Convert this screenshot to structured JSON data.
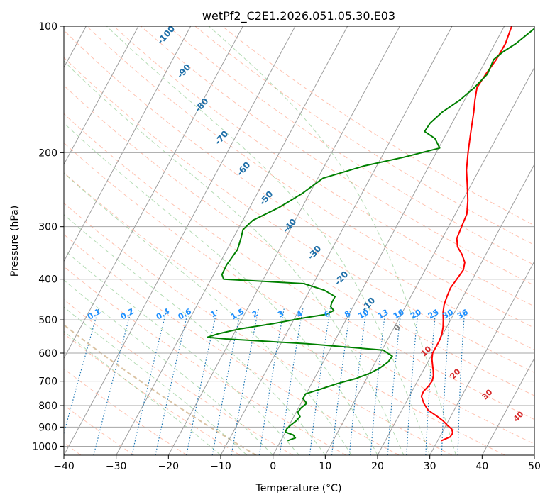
{
  "chart_data": {
    "type": "skew-t",
    "title": "wetPf2_C2E1.2026.051.05.30.E03",
    "xlabel": "Temperature (°C)",
    "ylabel": "Pressure (hPa)",
    "xlim": [
      -40,
      50
    ],
    "ylim_hpa": [
      1050,
      100
    ],
    "x_ticks": [
      -40,
      -30,
      -20,
      -10,
      0,
      10,
      20,
      30,
      40,
      50
    ],
    "x_tick_labels": [
      "−40",
      "−30",
      "−20",
      "−10",
      "0",
      "10",
      "20",
      "30",
      "40",
      "50"
    ],
    "y_ticks": [
      100,
      200,
      300,
      400,
      500,
      600,
      700,
      800,
      900,
      1000
    ],
    "y_tick_labels": [
      "100",
      "200",
      "300",
      "400",
      "500",
      "600",
      "700",
      "800",
      "900",
      "1000"
    ],
    "isotherms": [
      -160,
      -150,
      -140,
      -130,
      -120,
      -110,
      -100,
      -90,
      -80,
      -70,
      -60,
      -50,
      -40,
      -30,
      -20,
      -10,
      0,
      10,
      20,
      30,
      40,
      50
    ],
    "dry_adiabats_c": [
      -40,
      -30,
      -20,
      -10,
      0,
      10,
      20,
      30,
      40,
      50,
      60,
      70,
      80,
      90,
      100,
      110,
      120,
      130,
      140,
      150
    ],
    "moist_adiabats_c": [
      -10,
      -5,
      0,
      5,
      10,
      15,
      20,
      25,
      30,
      35
    ],
    "mixing_ratios": [
      0.1,
      0.2,
      0.4,
      0.6,
      1,
      1.5,
      2,
      3,
      4,
      6,
      8,
      10,
      13,
      16,
      20,
      25,
      30,
      36
    ],
    "mixing_ratio_labels": [
      "0.1",
      "0.2",
      "0.4",
      "0.6",
      "1",
      "1.5",
      "2",
      "3",
      "4",
      "6",
      "8",
      "10",
      "13",
      "16",
      "20",
      "25",
      "30",
      "36"
    ],
    "pseudoadiabat_labels": [
      {
        "text": "-100",
        "p": 112,
        "t": -100
      },
      {
        "text": "-90",
        "p": 130,
        "t": -90
      },
      {
        "text": "-80",
        "p": 153,
        "t": -80
      },
      {
        "text": "-70",
        "p": 185,
        "t": -70
      },
      {
        "text": "-60",
        "p": 230,
        "t": -60
      },
      {
        "text": "-50",
        "p": 285,
        "t": -50
      },
      {
        "text": "-40",
        "p": 325,
        "t": -40
      },
      {
        "text": "-30",
        "p": 370,
        "t": -30
      },
      {
        "text": "-20",
        "p": 410,
        "t": -20
      },
      {
        "text": "-10",
        "p": 470,
        "t": -10
      }
    ],
    "thetae_labels": [
      {
        "text": "0",
        "p": 540
      },
      {
        "text": "10",
        "p": 610
      },
      {
        "text": "20",
        "p": 690
      },
      {
        "text": "30",
        "p": 780
      },
      {
        "text": "40",
        "p": 880
      }
    ],
    "colors": {
      "temperature": "#ff0000",
      "dewpoint": "#008000",
      "isotherm": "#9e9e9e",
      "isobar": "#a6a6a6",
      "dry_adiabat": "#ff8f70",
      "moist_adiabat": "#69b969",
      "mixing_ratio": "#1f77b4",
      "mixing_ratio_label": "#1e90ff",
      "label_dark_blue": "#1f6fa8",
      "thetae_label": "#d62728",
      "tan_curve": "#d2b48c"
    },
    "series": [
      {
        "name": "Temperature",
        "pressure_hpa": [
          970,
          950,
          930,
          910,
          890,
          870,
          850,
          820,
          790,
          760,
          740,
          720,
          700,
          680,
          660,
          640,
          620,
          600,
          580,
          560,
          540,
          520,
          500,
          480,
          460,
          440,
          420,
          400,
          380,
          365,
          350,
          335,
          320,
          300,
          280,
          260,
          240,
          220,
          200,
          180,
          160,
          150,
          140,
          130,
          120,
          110,
          100
        ],
        "values": [
          30.7,
          32,
          32.1,
          31.5,
          30.2,
          29.0,
          27.5,
          25.0,
          23.5,
          22.3,
          22.2,
          22.6,
          22.8,
          22.5,
          21.9,
          21.2,
          20.5,
          20.0,
          20.0,
          20.0,
          19.8,
          19.3,
          18.6,
          17.8,
          17.2,
          16.9,
          16.7,
          17.0,
          17.3,
          16.8,
          15.5,
          13.8,
          12.8,
          12.5,
          12.2,
          11.0,
          9.4,
          7.6,
          6.1,
          4.6,
          3.0,
          2.0,
          1.1,
          1.4,
          1.9,
          2.0,
          1.4
        ]
      },
      {
        "name": "Dewpoint",
        "pressure_hpa": [
          970,
          955,
          940,
          925,
          910,
          890,
          870,
          850,
          830,
          810,
          790,
          770,
          750,
          730,
          710,
          690,
          670,
          650,
          630,
          610,
          590,
          570,
          555,
          550,
          540,
          525,
          510,
          495,
          485,
          475,
          465,
          455,
          440,
          425,
          410,
          400,
          390,
          370,
          340,
          320,
          305,
          290,
          270,
          250,
          230,
          215,
          205,
          195,
          185,
          178,
          170,
          160,
          150,
          140,
          130,
          120,
          115,
          110,
          100
        ],
        "values": [
          1.3,
          2.5,
          1.8,
          0.0,
          -0.1,
          0.3,
          0.9,
          1.2,
          0.3,
          0.5,
          1.1,
          -0.1,
          -0.1,
          2.4,
          4.8,
          7.9,
          10.1,
          11.5,
          12.4,
          12.6,
          10.2,
          -5.0,
          -21.0,
          -24.7,
          -23.1,
          -19.3,
          -13.4,
          -8.4,
          -4.3,
          -3.3,
          -4.3,
          -4.5,
          -4.5,
          -7.2,
          -11.8,
          -27.6,
          -28.4,
          -28.5,
          -28.0,
          -28.5,
          -29.0,
          -28.1,
          -24.4,
          -21.4,
          -19.0,
          -12.4,
          -5.7,
          0.2,
          -1.7,
          -4.4,
          -4.2,
          -3.0,
          -0.9,
          0.6,
          1.7,
          1.4,
          2.4,
          4.0,
          6.3
        ]
      }
    ]
  }
}
